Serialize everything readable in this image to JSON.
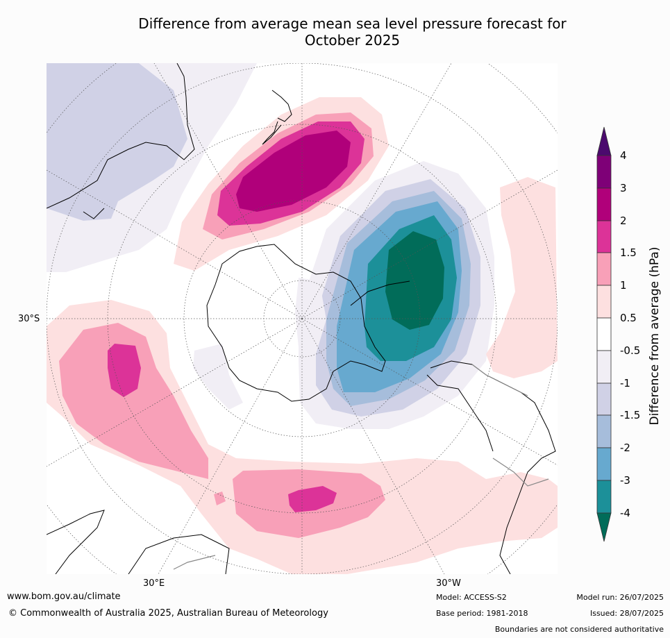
{
  "title_line1": "Difference from average mean sea level pressure forecast for",
  "title_line2": "October 2025",
  "map": {
    "projection": "south-polar stereographic",
    "lat_label": "30°S",
    "lon_labels": [
      "30°E",
      "30°W"
    ]
  },
  "colorbar": {
    "title": "Difference from average (hPa)",
    "levels": [
      "4",
      "3",
      "2",
      "1.5",
      "1",
      "0.5",
      "-0.5",
      "-1",
      "-1.5",
      "-2",
      "-3",
      "-4"
    ],
    "colors": {
      "above_4": "#4b0a6e",
      "3_to_4": "#7e0077",
      "2_to_3": "#b0007a",
      "1.5_to_2": "#dc3398",
      "1_to_1.5": "#f8a0b8",
      "0.5_to_1": "#fde0e0",
      "-0.5_to_0.5": "#ffffff",
      "-1_to_-0.5": "#f1eef5",
      "-1.5_to_-1": "#d0d1e6",
      "-2_to_-1.5": "#a6bddb",
      "-3_to_-2": "#67a9cf",
      "-4_to_-3": "#1c9099",
      "below_-4": "#016c59"
    }
  },
  "footer": {
    "website": "www.bom.gov.au/climate",
    "copyright": "© Commonwealth of Australia 2025, Australian Bureau of Meteorology",
    "model": "Model: ACCESS-S2",
    "base_period": "Base period: 1981-2018",
    "model_run": "Model run: 26/07/2025",
    "issued": "Issued: 28/07/2025",
    "disclaimer": "Boundaries are not considered authoritative"
  }
}
